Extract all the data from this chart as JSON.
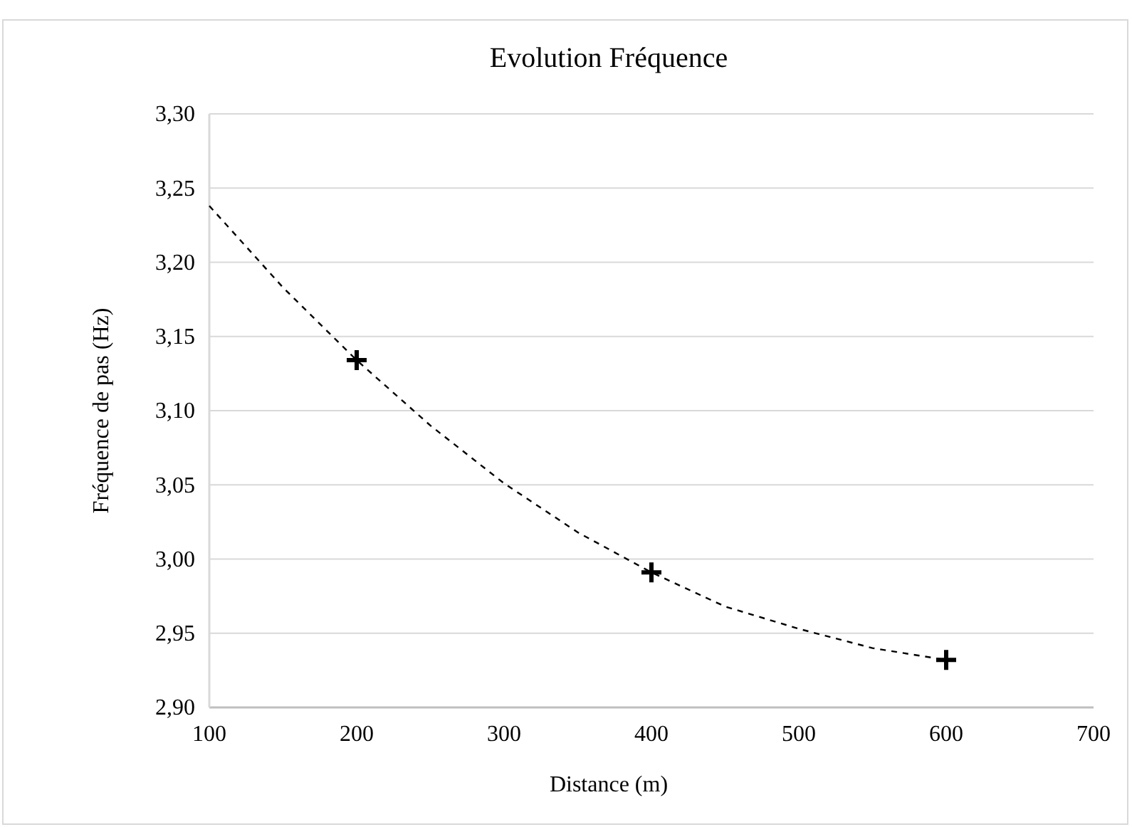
{
  "chart_data": {
    "type": "scatter",
    "title": "Evolution Fréquence",
    "xlabel": "Distance (m)",
    "ylabel": "Fréquence de pas  (Hz)",
    "xlim": [
      100,
      700
    ],
    "xticks": [
      100,
      200,
      300,
      400,
      500,
      600,
      700
    ],
    "ylim": [
      2.9,
      3.3
    ],
    "yticks": [
      {
        "value": 2.9,
        "label": "2,90"
      },
      {
        "value": 2.95,
        "label": "2,95"
      },
      {
        "value": 3.0,
        "label": "3,00"
      },
      {
        "value": 3.05,
        "label": "3,05"
      },
      {
        "value": 3.1,
        "label": "3,10"
      },
      {
        "value": 3.15,
        "label": "3,15"
      },
      {
        "value": 3.2,
        "label": "3,20"
      },
      {
        "value": 3.25,
        "label": "3,25"
      },
      {
        "value": 3.3,
        "label": "3,30"
      }
    ],
    "grid": "y",
    "marker": "cross",
    "series": [
      {
        "color": "#000000",
        "x": [
          200,
          400,
          600
        ],
        "values": [
          3.134,
          2.991,
          2.932
        ]
      },
      {
        "type": "line",
        "color": "#000000",
        "line_style": "dashed",
        "marker": "none",
        "x": [
          100,
          150,
          200,
          250,
          300,
          350,
          400,
          450,
          500,
          550,
          600
        ],
        "values": [
          3.238,
          3.183,
          3.134,
          3.09,
          3.051,
          3.018,
          2.991,
          2.968,
          2.953,
          2.94,
          2.932
        ]
      }
    ]
  }
}
